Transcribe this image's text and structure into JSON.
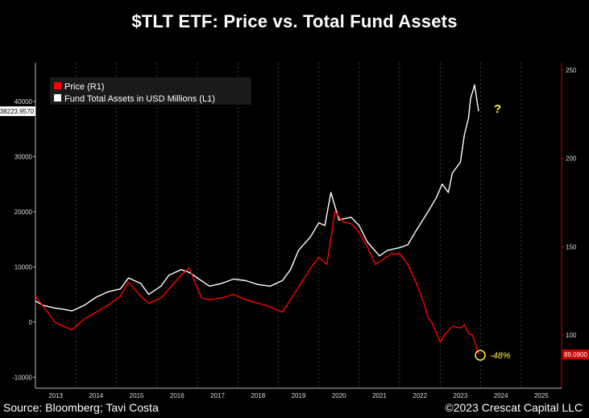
{
  "chart_data": {
    "type": "line",
    "title": "$TLT ETF:  Price vs. Total Fund Assets",
    "x_axis": {
      "range": [
        2012.8,
        2025.8
      ],
      "ticks": [
        {
          "label": "2013",
          "value": 2013.3
        },
        {
          "label": "2014",
          "value": 2014.3
        },
        {
          "label": "2015",
          "value": 2015.3
        },
        {
          "label": "2016",
          "value": 2016.3
        },
        {
          "label": "2017",
          "value": 2017.3
        },
        {
          "label": "2018",
          "value": 2018.3
        },
        {
          "label": "2019",
          "value": 2019.3
        },
        {
          "label": "2020",
          "value": 2020.3
        },
        {
          "label": "2021",
          "value": 2021.3
        },
        {
          "label": "2022",
          "value": 2022.3
        },
        {
          "label": "2023",
          "value": 2023.3
        },
        {
          "label": "2024",
          "value": 2024.3
        },
        {
          "label": "2025",
          "value": 2025.3
        }
      ],
      "gridlines": [
        2013.8,
        2014.8,
        2015.8,
        2016.8,
        2017.8,
        2018.8,
        2019.8,
        2020.8,
        2021.8,
        2022.8,
        2023.8,
        2024.8,
        2025.8
      ]
    },
    "y_left": {
      "range": [
        -12000,
        47000
      ],
      "ticks": [
        -10000,
        0,
        10000,
        20000,
        30000,
        40000
      ],
      "tick_labels": [
        "-10000",
        "0",
        "10000",
        "20000",
        "30000",
        "40000"
      ]
    },
    "y_right": {
      "range": [
        70,
        254
      ],
      "ticks": [
        100,
        150,
        200,
        250
      ],
      "tick_labels": [
        "100",
        "150",
        "200",
        "250"
      ]
    },
    "legend": {
      "position": "top-left",
      "items": [
        {
          "label": "Price (R1)",
          "color": "#ff0000"
        },
        {
          "label": "Fund Total Assets in USD Millions (L1)",
          "color": "#ffffff"
        }
      ]
    },
    "series": [
      {
        "name": "Fund Total Assets in USD Millions (L1)",
        "axis": "left",
        "color": "#ffffff",
        "x": [
          2012.8,
          2013.0,
          2013.3,
          2013.5,
          2013.7,
          2014.0,
          2014.3,
          2014.6,
          2014.9,
          2015.1,
          2015.4,
          2015.6,
          2015.9,
          2016.1,
          2016.4,
          2016.6,
          2016.9,
          2017.1,
          2017.4,
          2017.7,
          2018.0,
          2018.3,
          2018.6,
          2018.9,
          2019.1,
          2019.3,
          2019.6,
          2019.8,
          2019.95,
          2020.1,
          2020.3,
          2020.6,
          2020.8,
          2021.0,
          2021.3,
          2021.5,
          2021.8,
          2022.0,
          2022.2,
          2022.5,
          2022.7,
          2022.85,
          2023.0,
          2023.1,
          2023.3,
          2023.4,
          2023.5,
          2023.55,
          2023.65,
          2023.75
        ],
        "values": [
          3800,
          3000,
          2500,
          2300,
          2000,
          3000,
          4500,
          5500,
          6000,
          8000,
          7000,
          5000,
          6500,
          8500,
          9500,
          9000,
          7500,
          6500,
          7000,
          7800,
          7500,
          6800,
          6500,
          7500,
          9500,
          13000,
          15500,
          18000,
          17500,
          23500,
          18500,
          19000,
          17500,
          14500,
          12000,
          13000,
          13500,
          14000,
          16500,
          20000,
          22500,
          25000,
          23500,
          27000,
          29000,
          34000,
          37000,
          40500,
          43000,
          38223.957
        ]
      },
      {
        "name": "Price (R1)",
        "axis": "right",
        "color": "#ff0000",
        "x": [
          2012.8,
          2013.0,
          2013.3,
          2013.5,
          2013.7,
          2014.0,
          2014.3,
          2014.6,
          2014.9,
          2015.1,
          2015.4,
          2015.6,
          2015.9,
          2016.1,
          2016.4,
          2016.6,
          2016.9,
          2017.1,
          2017.4,
          2017.7,
          2018.0,
          2018.3,
          2018.6,
          2018.9,
          2019.1,
          2019.3,
          2019.6,
          2019.8,
          2020.0,
          2020.2,
          2020.4,
          2020.6,
          2020.8,
          2021.0,
          2021.2,
          2021.4,
          2021.6,
          2021.8,
          2022.0,
          2022.2,
          2022.4,
          2022.5,
          2022.6,
          2022.8,
          2022.9,
          2023.1,
          2023.3,
          2023.4,
          2023.5,
          2023.6,
          2023.75
        ],
        "values": [
          122,
          116,
          107,
          105,
          103,
          109,
          113,
          117,
          122,
          130,
          122,
          118,
          121,
          126,
          134,
          138,
          121,
          120,
          121,
          123,
          120,
          118,
          116,
          113,
          120,
          127,
          138,
          144,
          140,
          170,
          164,
          163,
          158,
          150,
          140,
          143,
          146,
          146,
          140,
          130,
          118,
          110,
          107,
          96,
          100,
          105,
          104,
          106,
          101,
          100,
          89.09
        ]
      }
    ],
    "current_value_labels": {
      "left": "38223.9570",
      "right": "89.0900"
    },
    "annotations": [
      {
        "text": "?",
        "color": "#ffee33"
      },
      {
        "text": "-48%",
        "color": "#ffee33"
      }
    ]
  },
  "footer": {
    "source": "Source: Bloomberg; Tavi Costa",
    "copyright": "©2023 Crescat Capital LLC"
  }
}
